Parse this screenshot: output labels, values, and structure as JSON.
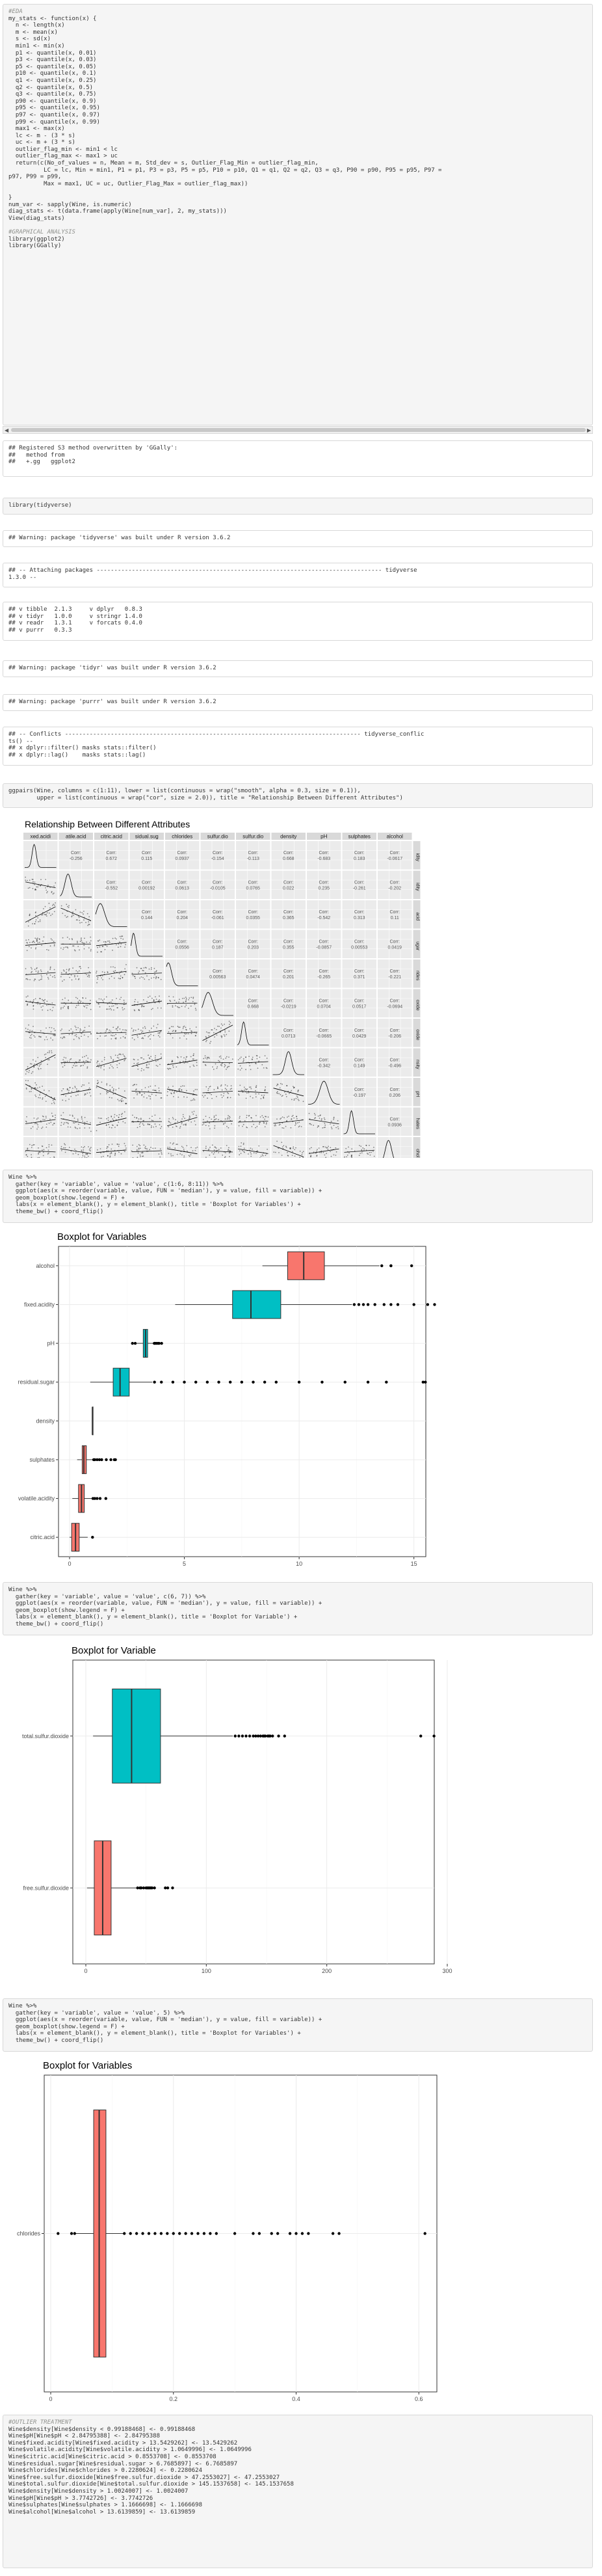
{
  "blocks": {
    "stats_code": [
      "#EDA",
      "my_stats <- function(x) {",
      "  n <- length(x)",
      "  m <- mean(x)",
      "  s <- sd(x)",
      "  min1 <- min(x)",
      "  p1 <- quantile(x, 0.01)",
      "  p3 <- quantile(x, 0.03)",
      "  p5 <- quantile(x, 0.05)",
      "  p10 <- quantile(x, 0.1)",
      "  q1 <- quantile(x, 0.25)",
      "  q2 <- quantile(x, 0.5)",
      "  q3 <- quantile(x, 0.75)",
      "  p90 <- quantile(x, 0.9)",
      "  p95 <- quantile(x, 0.95)",
      "  p97 <- quantile(x, 0.97)",
      "  p99 <- quantile(x, 0.99)",
      "  max1 <- max(x)",
      "  lc <- m - (3 * s)",
      "  uc <- m + (3 * s)",
      "  outlier_flag_min <- min1 < lc",
      "  outlier_flag_max <- max1 > uc",
      "  return(c(No_of_values = n, Mean = m, Std_dev = s, Outlier_Flag_Min = outlier_flag_min,",
      "          LC = lc, Min = min1, P1 = p1, P3 = p3, P5 = p5, P10 = p10, Q1 = q1, Q2 = q2, Q3 = q3, P90 = p90, P95 = p95, P97 =",
      "p97, P99 = p99,",
      "          Max = max1, UC = uc, Outlier_Flag_Max = outlier_flag_max))",
      "",
      "}",
      "num_var <- sapply(Wine, is.numeric)",
      "diag_stats <- t(data.frame(apply(Wine[num_var], 2, my_stats)))",
      "View(diag_stats)",
      "",
      "#GRAPHICAL ANALYSIS",
      "library(ggplot2)",
      "library(GGally)"
    ],
    "ggally_out": [
      "## Registered S3 method overwritten by 'GGally':",
      "##   method from",
      "##   +.gg   ggplot2"
    ],
    "tidyverse_code": [
      "library(tidyverse)"
    ],
    "tidyverse_warn": [
      "## Warning: package 'tidyverse' was built under R version 3.6.2"
    ],
    "attach_out": [
      "## -- Attaching packages --------------------------------------------------------------------------------- tidyverse",
      "1.3.0 --"
    ],
    "pkgs_out": [
      "## v tibble  2.1.3     v dplyr   0.8.3",
      "## v tidyr   1.0.0     v stringr 1.4.0",
      "## v readr   1.3.1     v forcats 0.4.0",
      "## v purrr   0.3.3"
    ],
    "tidyr_warn": [
      "## Warning: package 'tidyr' was built under R version 3.6.2"
    ],
    "purrr_warn": [
      "## Warning: package 'purrr' was built under R version 3.6.2"
    ],
    "conflicts_out": [
      "## -- Conflicts ------------------------------------------------------------------------------------ tidyverse_conflic",
      "ts() --",
      "## x dplyr::filter() masks stats::filter()",
      "## x dplyr::lag()    masks stats::lag()"
    ],
    "ggpairs_code": [
      "ggpairs(Wine, columns = c(1:11), lower = list(continuous = wrap(\"smooth\", alpha = 0.3, size = 0.1)),",
      "        upper = list(continuous = wrap(\"cor\", size = 2.0)), title = \"Relationship Between Different Attributes\")"
    ],
    "box1_code": [
      "Wine %>%",
      "  gather(key = 'variable', value = 'value', c(1:6, 8:11)) %>%",
      "  ggplot(aes(x = reorder(variable, value, FUN = 'median'), y = value, fill = variable)) +",
      "  geom_boxplot(show.legend = F) +",
      "  labs(x = element_blank(), y = element_blank(), title = 'Boxplot for Variables') +",
      "  theme_bw() + coord_flip()"
    ],
    "box2_code": [
      "Wine %>%",
      "  gather(key = 'variable', value = 'value', c(6, 7)) %>%",
      "  ggplot(aes(x = reorder(variable, value, FUN = 'median'), y = value, fill = variable)) +",
      "  geom_boxplot(show.legend = F) +",
      "  labs(x = element_blank(), y = element_blank(), title = 'Boxplot for Variable') +",
      "  theme_bw() + coord_flip()"
    ],
    "box3_code": [
      "Wine %>%",
      "  gather(key = 'variable', value = 'value', 5) %>%",
      "  ggplot(aes(x = reorder(variable, value, FUN = 'median'), y = value, fill = variable)) +",
      "  geom_boxplot(show.legend = F) +",
      "  labs(x = element_blank(), y = element_blank(), title = 'Boxplot for Variables') +",
      "  theme_bw() + coord_flip()"
    ],
    "outlier_code": [
      "#OUTLIER TREATMENT",
      "Wine$density[Wine$density < 0.99188468] <- 0.99188468",
      "Wine$pH[Wine$pH < 2.84795388] <- 2.84795388",
      "Wine$fixed.acidity[Wine$fixed.acidity > 13.5429262] <- 13.5429262",
      "Wine$volatile.acidity[Wine$volatile.acidity > 1.0649996] <- 1.0649996",
      "Wine$citric.acid[Wine$citric.acid > 0.8553708] <- 0.8553708",
      "Wine$residual.sugar[Wine$residual.sugar > 6.7685897] <- 6.7685897",
      "Wine$chlorides[Wine$chlorides > 0.2280624] <- 0.2280624",
      "Wine$free.sulfur.dioxide[Wine$free.sulfur.dioxide > 47.2553027] <- 47.2553027",
      "Wine$total.sulfur.dioxide[Wine$total.sulfur.dioxide > 145.1537658] <- 145.1537658",
      "Wine$density[Wine$density > 1.0024007] <- 1.0024007",
      "Wine$pH[Wine$pH > 3.7742726] <- 3.7742726",
      "Wine$sulphates[Wine$sulphates > 1.1666698] <- 1.1666698",
      "Wine$alcohol[Wine$alcohol > 13.6139859] <- 13.6139859"
    ]
  },
  "pairs": {
    "title": "Relationship Between Different Attributes",
    "vars": [
      "fixed.acidity",
      "volatile.acidity",
      "citric.acid",
      "residual.sugar",
      "chlorides",
      "free.sulfur.dioxide",
      "total.sulfur.dioxide",
      "density",
      "pH",
      "sulphates",
      "alcohol"
    ],
    "col_labels": [
      "xed.acidi",
      "atile.acid",
      "citric.acid",
      "sidual.sug",
      "chlorides",
      "sulfur.dio",
      "sulfur.dio",
      "density",
      "pH",
      "sulphates",
      "alcohol"
    ],
    "row_labels": [
      "idity",
      "idity",
      "acid",
      "ugar",
      "rides",
      "oxide",
      "oxide",
      "nsity",
      "pH",
      "hates",
      "ohol"
    ],
    "cor_label": "Corr:",
    "cors": [
      [
        "-0.256",
        "0.672",
        "0.115",
        "0.0937",
        "-0.154",
        "-0.113",
        "0.668",
        "-0.683",
        "0.183",
        "-0.0617"
      ],
      [
        "-0.552",
        "0.00192",
        "0.0613",
        "-0.0105",
        "0.0765",
        "0.022",
        "0.235",
        "-0.261",
        "-0.202"
      ],
      [
        "0.144",
        "0.204",
        "-0.061",
        "0.0355",
        "0.365",
        "-0.542",
        "0.313",
        "0.11"
      ],
      [
        "0.0556",
        "0.187",
        "0.203",
        "0.355",
        "-0.0857",
        "0.00553",
        "0.0419"
      ],
      [
        "0.00563",
        "0.0474",
        "0.201",
        "-0.265",
        "0.371",
        "-0.221"
      ],
      [
        "0.668",
        "-0.0219",
        "0.0704",
        "0.0517",
        "-0.0694"
      ],
      [
        "0.0713",
        "-0.0665",
        "0.0429",
        "-0.206"
      ],
      [
        "-0.342",
        "0.149",
        "-0.496"
      ],
      [
        "-0.197",
        "0.206"
      ],
      [
        "0.0936"
      ]
    ],
    "x_ticks_bottom": "0 4 8 0.0.8.0.3.6.0.0.4.0.8.0 4 8 120.00.20.40.60 204060 0102030 0.99 1.00 3.03.54.00.5 1.0 1.5 2.0 101214"
  },
  "box1": {
    "title": "Boxplot for Variables",
    "chart_data": {
      "type": "box",
      "categories": [
        "alcohol",
        "fixed.acidity",
        "pH",
        "residual.sugar",
        "density",
        "sulphates",
        "volatile.acidity",
        "citric.acid"
      ],
      "xlim": [
        0,
        16
      ],
      "ticks": [
        0,
        5,
        10,
        15
      ],
      "colors": [
        "#f8766d",
        "#00bfc4",
        "#00bfc4",
        "#00bfc4",
        "#00bfc4",
        "#f8766d",
        "#f8766d",
        "#f8766d"
      ],
      "boxes": [
        {
          "min": 8.4,
          "q1": 9.5,
          "median": 10.2,
          "q3": 11.1,
          "max": 13.5,
          "outliers": [
            13.6,
            14.0,
            14.0,
            14.9
          ]
        },
        {
          "min": 4.6,
          "q1": 7.1,
          "median": 7.9,
          "q3": 9.2,
          "max": 12.3,
          "outliers": [
            12.4,
            12.6,
            12.8,
            13.0,
            13.3,
            13.7,
            14.0,
            14.3,
            15.0,
            15.6,
            15.9
          ]
        },
        {
          "min": 2.9,
          "q1": 3.21,
          "median": 3.31,
          "q3": 3.4,
          "max": 3.68,
          "outliers": [
            2.74,
            2.86,
            3.69,
            3.72,
            3.78,
            3.85,
            3.9,
            4.01
          ]
        },
        {
          "min": 0.9,
          "q1": 1.9,
          "median": 2.2,
          "q3": 2.6,
          "max": 3.6,
          "outliers": [
            3.7,
            4.0,
            4.5,
            5.0,
            5.5,
            6.0,
            6.5,
            7.0,
            7.5,
            8.0,
            8.5,
            9.0,
            10.0,
            11.0,
            12.0,
            13.0,
            13.8,
            15.4,
            15.5
          ]
        },
        {
          "min": 0.99,
          "q1": 0.9956,
          "median": 0.9968,
          "q3": 0.9978,
          "max": 1.004,
          "outliers": []
        },
        {
          "min": 0.33,
          "q1": 0.55,
          "median": 0.62,
          "q3": 0.73,
          "max": 1.0,
          "outliers": [
            1.05,
            1.1,
            1.2,
            1.3,
            1.4,
            1.6,
            1.8,
            1.95,
            2.0
          ]
        },
        {
          "min": 0.12,
          "q1": 0.39,
          "median": 0.52,
          "q3": 0.64,
          "max": 1.01,
          "outliers": [
            1.02,
            1.1,
            1.2,
            1.33,
            1.58
          ]
        },
        {
          "min": 0.0,
          "q1": 0.09,
          "median": 0.26,
          "q3": 0.42,
          "max": 0.79,
          "outliers": [
            1.0
          ]
        }
      ]
    }
  },
  "box2": {
    "title": "Boxplot for Variable",
    "chart_data": {
      "type": "box",
      "categories": [
        "total.sulfur.dioxide",
        "free.sulfur.dioxide"
      ],
      "xlim": [
        0,
        300
      ],
      "ticks": [
        0,
        100,
        200,
        300
      ],
      "colors": [
        "#00bfc4",
        "#f8766d"
      ],
      "boxes": [
        {
          "min": 6,
          "q1": 22,
          "median": 38,
          "q3": 62,
          "max": 122,
          "outliers": [
            124,
            127,
            130,
            133,
            136,
            139,
            141,
            143,
            145,
            147,
            148,
            149,
            151,
            152,
            153,
            155,
            160,
            165,
            278,
            289
          ]
        },
        {
          "min": 1,
          "q1": 7,
          "median": 14,
          "q3": 21,
          "max": 42,
          "outliers": [
            43,
            45,
            46,
            48,
            50,
            51,
            52,
            53,
            54,
            55,
            57,
            66,
            68,
            72
          ]
        }
      ]
    }
  },
  "box3": {
    "title": "Boxplot for Variables",
    "chart_data": {
      "type": "box",
      "categories": [
        "chlorides"
      ],
      "xlim": [
        0,
        0.64
      ],
      "ticks": [
        0.0,
        0.2,
        0.4,
        0.6
      ],
      "colors": [
        "#f8766d"
      ],
      "boxes": [
        {
          "min": 0.04,
          "q1": 0.07,
          "median": 0.079,
          "q3": 0.09,
          "max": 0.119,
          "outliers": [
            0.012,
            0.034,
            0.039,
            0.12,
            0.13,
            0.14,
            0.15,
            0.16,
            0.17,
            0.18,
            0.19,
            0.2,
            0.21,
            0.22,
            0.23,
            0.24,
            0.25,
            0.26,
            0.27,
            0.3,
            0.33,
            0.34,
            0.36,
            0.37,
            0.39,
            0.4,
            0.41,
            0.42,
            0.46,
            0.47,
            0.61
          ]
        }
      ]
    }
  }
}
